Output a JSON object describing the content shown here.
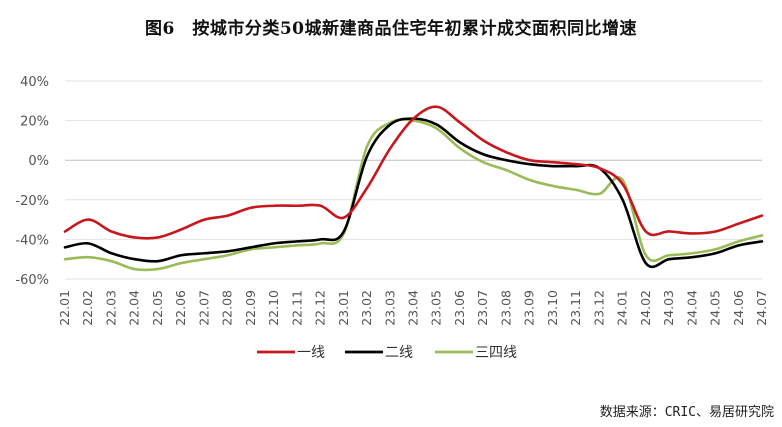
{
  "page": {
    "title": "图6　按城市分类50城新建商品住宅年初累计成交面积同比增速",
    "source": "数据来源：CRIC、易居研究院"
  },
  "chart_data": {
    "type": "line",
    "title": "图6　按城市分类50城新建商品住宅年初累计成交面积同比增速",
    "xlabel": "",
    "ylabel": "",
    "ylim": [
      -60,
      40
    ],
    "yticks": [
      -60,
      -40,
      -20,
      0,
      20,
      40
    ],
    "ytick_labels": [
      "-60%",
      "-40%",
      "-20%",
      "0%",
      "20%",
      "40%"
    ],
    "grid": "horizontal",
    "legend_position": "bottom",
    "x": [
      "22.01",
      "22.02",
      "22.03",
      "22.04",
      "22.05",
      "22.06",
      "22.07",
      "22.08",
      "22.09",
      "22.10",
      "22.11",
      "22.12",
      "23.01",
      "23.02",
      "23.03",
      "23.04",
      "23.05",
      "23.06",
      "23.07",
      "23.08",
      "23.09",
      "23.10",
      "23.11",
      "23.12",
      "24.01",
      "24.02",
      "24.03",
      "24.04",
      "24.05",
      "24.06",
      "24.07"
    ],
    "series": [
      {
        "name": "一线",
        "color": "#C8161D",
        "values": [
          -36,
          -30,
          -36,
          -39,
          -39,
          -35,
          -30,
          -28,
          -24,
          -23,
          -23,
          -23,
          -29,
          -14,
          6,
          21,
          27,
          19,
          10,
          4,
          0,
          -1,
          -2,
          -4,
          -12,
          -36,
          -36,
          -37,
          -36,
          -32,
          -28
        ]
      },
      {
        "name": "二线",
        "color": "#000000",
        "values": [
          -44,
          -42,
          -47,
          -50,
          -51,
          -48,
          -47,
          -46,
          -44,
          -42,
          -41,
          -40,
          -36,
          2,
          18,
          21,
          18,
          9,
          3,
          0,
          -2,
          -3,
          -3,
          -4,
          -20,
          -52,
          -50,
          -49,
          -47,
          -43,
          -41
        ]
      },
      {
        "name": "三四线",
        "color": "#9BBB59",
        "values": [
          -50,
          -49,
          -51,
          -55,
          -55,
          -52,
          -50,
          -48,
          -45,
          -44,
          -43,
          -42,
          -37,
          7,
          19,
          20,
          16,
          6,
          -1,
          -5,
          -10,
          -13,
          -15,
          -17,
          -10,
          -48,
          -48,
          -47,
          -45,
          -41,
          -38
        ]
      }
    ]
  }
}
